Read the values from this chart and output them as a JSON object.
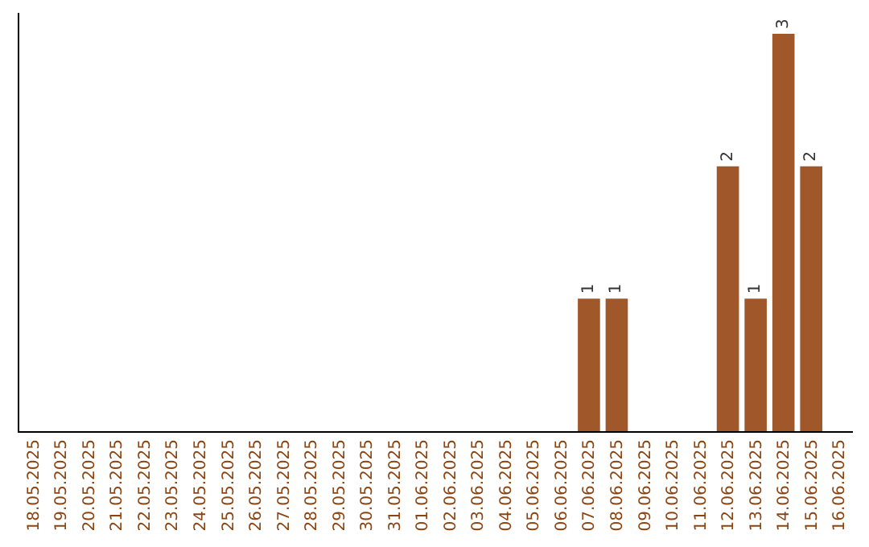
{
  "chart_data": {
    "type": "bar",
    "categories": [
      "18.05.2025",
      "19.05.2025",
      "20.05.2025",
      "21.05.2025",
      "22.05.2025",
      "23.05.2025",
      "24.05.2025",
      "25.05.2025",
      "26.05.2025",
      "27.05.2025",
      "28.05.2025",
      "29.05.2025",
      "30.05.2025",
      "31.05.2025",
      "01.06.2025",
      "02.06.2025",
      "03.06.2025",
      "04.06.2025",
      "05.06.2025",
      "06.06.2025",
      "07.06.2025",
      "08.06.2025",
      "09.06.2025",
      "10.06.2025",
      "11.06.2025",
      "12.06.2025",
      "13.06.2025",
      "14.06.2025",
      "15.06.2025",
      "16.06.2025"
    ],
    "values": [
      null,
      null,
      null,
      null,
      null,
      null,
      null,
      null,
      null,
      null,
      null,
      null,
      null,
      null,
      null,
      null,
      null,
      null,
      null,
      null,
      1,
      1,
      null,
      null,
      null,
      2,
      1,
      3,
      2,
      null
    ],
    "data_labels": true,
    "color": "#a0582a",
    "tick_labels": "x",
    "grid": false
  }
}
